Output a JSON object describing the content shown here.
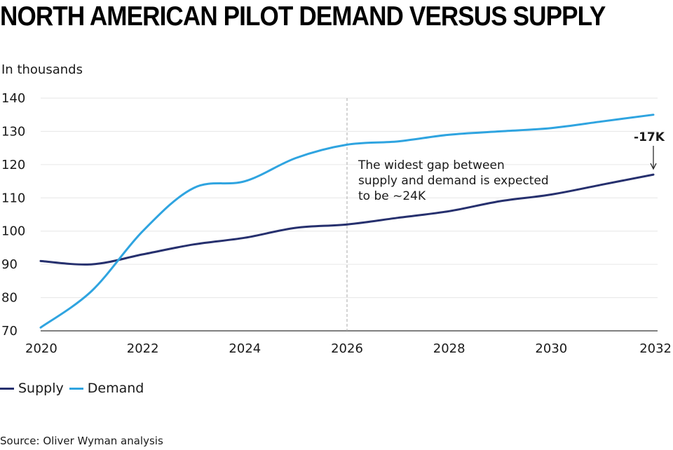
{
  "colors": {
    "supply": "#26306e",
    "demand": "#2fa4e0",
    "grid": "#e6e6e6",
    "marker": "#aaaaaa"
  },
  "source": "Source: Oliver Wyman analysis",
  "chart_data": {
    "type": "line",
    "title": "NORTH AMERICAN PILOT DEMAND VERSUS SUPPLY",
    "unit_label": "In thousands",
    "xlim": [
      2020,
      2032
    ],
    "ylim": [
      70,
      140
    ],
    "x_ticks": [
      "2020",
      "2022",
      "2024",
      "2026",
      "2028",
      "2030",
      "2032"
    ],
    "y_ticks": [
      "70",
      "80",
      "90",
      "100",
      "110",
      "120",
      "130",
      "140"
    ],
    "grid": true,
    "legend_position": "bottom-left",
    "x": [
      2020,
      2021,
      2022,
      2023,
      2024,
      2025,
      2026,
      2027,
      2028,
      2029,
      2030,
      2031,
      2032
    ],
    "series": [
      {
        "name": "Supply",
        "values": [
          91,
          90,
          93,
          96,
          98,
          101,
          102,
          104,
          106,
          109,
          111,
          114,
          117
        ]
      },
      {
        "name": "Demand",
        "values": [
          71,
          82,
          100,
          113,
          115,
          122,
          126,
          127,
          129,
          130,
          131,
          133,
          135
        ]
      }
    ],
    "reference_line_x": 2026,
    "annotations": [
      {
        "text_lines": [
          "The widest gap between",
          "supply and demand is expected",
          "to be ~24K"
        ]
      },
      {
        "text": "-17K",
        "arrow": "down"
      }
    ]
  }
}
